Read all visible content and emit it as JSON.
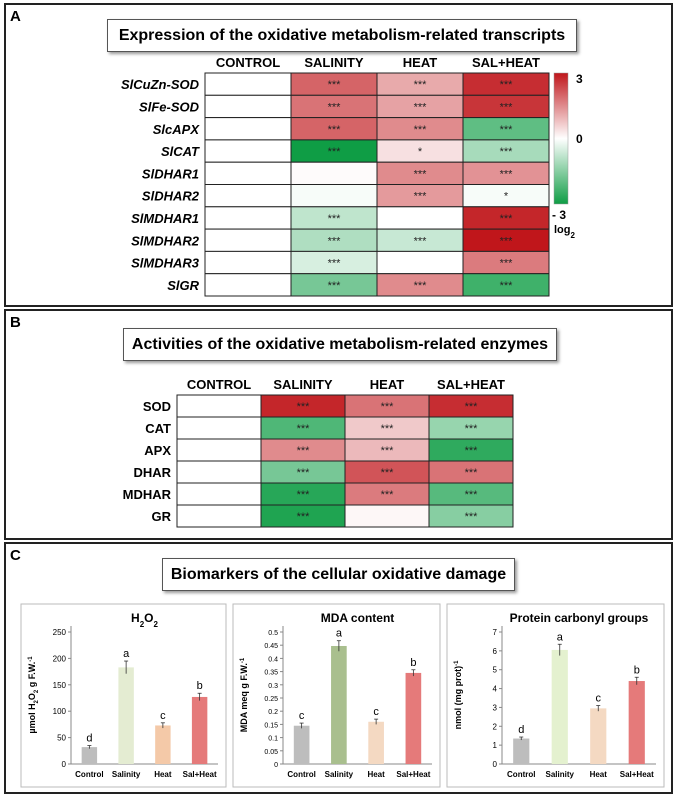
{
  "panel_a": {
    "label": "A",
    "title": "Expression of the oxidative metabolism-related transcripts",
    "columns": [
      "CONTROL",
      "SALINITY",
      "HEAT",
      "SAL+HEAT"
    ],
    "rows": [
      {
        "gene": "SlCuZn-SOD",
        "values": [
          0,
          2.0,
          1.1,
          2.7
        ],
        "sig": [
          "",
          "***",
          "***",
          "***"
        ]
      },
      {
        "gene": "SlFe-SOD",
        "values": [
          0,
          1.8,
          1.2,
          2.6
        ],
        "sig": [
          "",
          "***",
          "***",
          "***"
        ]
      },
      {
        "gene": "SlcAPX",
        "values": [
          0,
          2.0,
          1.5,
          -2.0
        ],
        "sig": [
          "",
          "***",
          "***",
          "***"
        ]
      },
      {
        "gene": "SlCAT",
        "values": [
          0,
          -3.0,
          0.4,
          -1.1
        ],
        "sig": [
          "",
          "***",
          "*",
          "***"
        ]
      },
      {
        "gene": "SlDHAR1",
        "values": [
          0,
          0.05,
          1.5,
          1.4
        ],
        "sig": [
          "",
          "",
          "***",
          "***"
        ]
      },
      {
        "gene": "SlDHAR2",
        "values": [
          0,
          -0.1,
          1.3,
          -0.1
        ],
        "sig": [
          "",
          "",
          "***",
          "*"
        ]
      },
      {
        "gene": "SlMDHAR1",
        "values": [
          0,
          -0.8,
          0,
          2.8
        ],
        "sig": [
          "",
          "***",
          "",
          "***"
        ]
      },
      {
        "gene": "SlMDHAR2",
        "values": [
          0,
          -1.0,
          -0.7,
          3.0
        ],
        "sig": [
          "",
          "***",
          "***",
          "***"
        ]
      },
      {
        "gene": "SlMDHAR3",
        "values": [
          0,
          -0.5,
          0,
          1.7
        ],
        "sig": [
          "",
          "***",
          "",
          "***"
        ]
      },
      {
        "gene": "SlGR",
        "values": [
          0,
          -1.7,
          1.5,
          -2.4
        ],
        "sig": [
          "",
          "***",
          "***",
          "***"
        ]
      }
    ],
    "legend": {
      "max": "3",
      "mid": "0",
      "min": "- 3",
      "unit_base": "log",
      "unit_sub": "2"
    }
  },
  "panel_b": {
    "label": "B",
    "title": "Activities of the oxidative metabolism-related enzymes",
    "columns": [
      "CONTROL",
      "SALINITY",
      "HEAT",
      "SAL+HEAT"
    ],
    "rows": [
      {
        "enzyme": "SOD",
        "values": [
          0,
          2.8,
          1.8,
          2.7
        ],
        "sig": [
          "",
          "***",
          "***",
          "***"
        ]
      },
      {
        "enzyme": "CAT",
        "values": [
          0,
          -2.2,
          0.7,
          -1.3
        ],
        "sig": [
          "",
          "***",
          "***",
          "***"
        ]
      },
      {
        "enzyme": "APX",
        "values": [
          0,
          1.5,
          0.9,
          -2.6
        ],
        "sig": [
          "",
          "***",
          "***",
          "***"
        ]
      },
      {
        "enzyme": "DHAR",
        "values": [
          0,
          -1.7,
          2.2,
          1.8
        ],
        "sig": [
          "",
          "***",
          "***",
          "***"
        ]
      },
      {
        "enzyme": "MDHAR",
        "values": [
          0,
          -2.7,
          1.7,
          -2.1
        ],
        "sig": [
          "",
          "***",
          "***",
          "***"
        ]
      },
      {
        "enzyme": "GR",
        "values": [
          0,
          -2.8,
          0.1,
          -1.5
        ],
        "sig": [
          "",
          "***",
          "",
          "***"
        ]
      }
    ]
  },
  "panel_c": {
    "label": "C",
    "title": "Biomarkers of the cellular oxidative damage"
  },
  "colors": {
    "red": "#c0161b",
    "white": "#ffffff",
    "green": "#0f9d45"
  },
  "chart_data": [
    {
      "type": "bar",
      "title": "H",
      "title_sub": "2",
      "title_tail": "O",
      "title_sub2": "2",
      "categories": [
        "Control",
        "Salinity",
        "Heat",
        "Sal+Heat"
      ],
      "values": [
        32,
        183,
        73,
        127
      ],
      "errors": [
        3,
        12,
        5,
        7
      ],
      "letters": [
        "d",
        "a",
        "c",
        "b"
      ],
      "ylabel": "µmol H2O2 g F.W.-1",
      "ylabel_parts": [
        "µmol H",
        "2",
        "O",
        "2",
        " g F.W.",
        "-1"
      ],
      "ylim": [
        0,
        250
      ],
      "yticks": [
        "0",
        "50",
        "100",
        "150",
        "200",
        "250"
      ],
      "colors": [
        "#bdbdbd",
        "#e4ecd2",
        "#f4c9a8",
        "#e57a7a"
      ]
    },
    {
      "type": "bar",
      "title": "MDA content",
      "categories": [
        "Control",
        "Salinity",
        "Heat",
        "Sal+Heat"
      ],
      "values": [
        0.145,
        0.447,
        0.16,
        0.345
      ],
      "errors": [
        0.01,
        0.02,
        0.01,
        0.012
      ],
      "letters": [
        "c",
        "a",
        "c",
        "b"
      ],
      "ylabel": "MDA meq g F.W.-1",
      "ylabel_parts": [
        "MDA meq g F.W.",
        "-1"
      ],
      "ylim": [
        0,
        0.5
      ],
      "yticks": [
        "0",
        "0.05",
        "0.1",
        "0.15",
        "0.2",
        "0.25",
        "0.3",
        "0.35",
        "0.4",
        "0.45",
        "0.5"
      ],
      "colors": [
        "#bdbdbd",
        "#a9bf8e",
        "#f4d9c2",
        "#e57a7a"
      ]
    },
    {
      "type": "bar",
      "title": "Protein carbonyl groups",
      "categories": [
        "Control",
        "Salinity",
        "Heat",
        "Sal+Heat"
      ],
      "values": [
        1.35,
        6.05,
        2.95,
        4.4
      ],
      "errors": [
        0.08,
        0.3,
        0.15,
        0.2
      ],
      "letters": [
        "d",
        "a",
        "c",
        "b"
      ],
      "ylabel": "nmol (mg prot)-1",
      "ylabel_parts": [
        "nmol (mg prot)",
        "-1"
      ],
      "ylim": [
        0,
        7
      ],
      "yticks": [
        "0",
        "1",
        "2",
        "3",
        "4",
        "5",
        "6",
        "7"
      ],
      "colors": [
        "#bdbdbd",
        "#e4f1cf",
        "#f4d9c2",
        "#e57a7a"
      ]
    }
  ]
}
